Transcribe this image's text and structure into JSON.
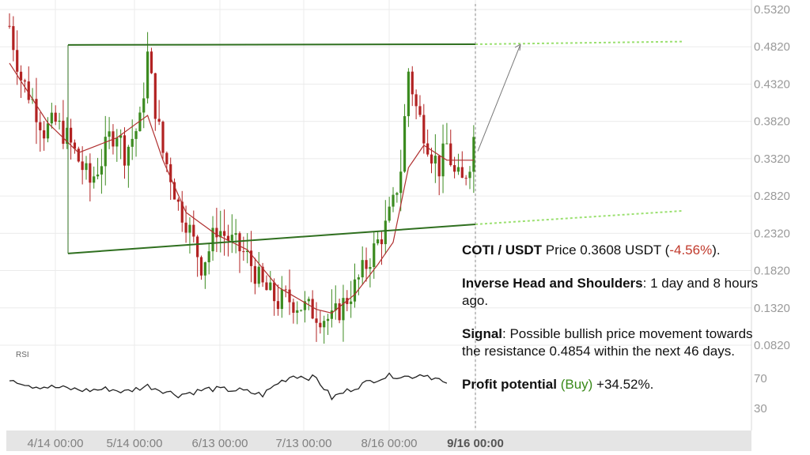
{
  "chart_data": {
    "type": "candlestick",
    "pair": "COTI / USDT",
    "y_ticks": [
      "0.5320",
      "0.4820",
      "0.4320",
      "0.3820",
      "0.3320",
      "0.2820",
      "0.2320",
      "0.1820",
      "0.1320",
      "0.0820"
    ],
    "ylim": [
      0.05,
      0.535
    ],
    "x_ticks": [
      "4/14 00:00",
      "5/14 00:00",
      "6/13 00:00",
      "7/13 00:00",
      "8/16 00:00",
      "9/16 00:00"
    ],
    "rsi": {
      "label": "RSI",
      "ticks": [
        "70",
        "30"
      ]
    },
    "pattern": "Inverse Head and Shoulders",
    "resistance": 0.4854,
    "last_price": 0.3608,
    "price_trace": [
      [
        0,
        0.51
      ],
      [
        3,
        0.44
      ],
      [
        6,
        0.41
      ],
      [
        9,
        0.37
      ],
      [
        12,
        0.38
      ],
      [
        15,
        0.36
      ],
      [
        18,
        0.33
      ],
      [
        21,
        0.3
      ],
      [
        24,
        0.33
      ],
      [
        26,
        0.36
      ],
      [
        28,
        0.37
      ],
      [
        30,
        0.34
      ],
      [
        32,
        0.36
      ],
      [
        34,
        0.38
      ],
      [
        36,
        0.47
      ],
      [
        38,
        0.4
      ],
      [
        40,
        0.34
      ],
      [
        42,
        0.31
      ],
      [
        44,
        0.27
      ],
      [
        46,
        0.25
      ],
      [
        48,
        0.22
      ],
      [
        50,
        0.19
      ],
      [
        52,
        0.21
      ],
      [
        54,
        0.24
      ],
      [
        56,
        0.23
      ],
      [
        58,
        0.22
      ],
      [
        60,
        0.21
      ],
      [
        62,
        0.2
      ],
      [
        64,
        0.18
      ],
      [
        66,
        0.16
      ],
      [
        68,
        0.15
      ],
      [
        70,
        0.14
      ],
      [
        72,
        0.145
      ],
      [
        74,
        0.14
      ],
      [
        76,
        0.135
      ],
      [
        78,
        0.13
      ],
      [
        80,
        0.125
      ],
      [
        82,
        0.12
      ],
      [
        84,
        0.115
      ],
      [
        86,
        0.13
      ],
      [
        88,
        0.145
      ],
      [
        90,
        0.16
      ],
      [
        92,
        0.18
      ],
      [
        94,
        0.2
      ],
      [
        96,
        0.22
      ],
      [
        98,
        0.24
      ],
      [
        100,
        0.27
      ],
      [
        102,
        0.32
      ],
      [
        104,
        0.45
      ],
      [
        106,
        0.4
      ],
      [
        108,
        0.37
      ],
      [
        110,
        0.34
      ],
      [
        112,
        0.32
      ],
      [
        114,
        0.35
      ],
      [
        116,
        0.31
      ],
      [
        118,
        0.3
      ],
      [
        120,
        0.33
      ],
      [
        121,
        0.36
      ]
    ],
    "ma_trace": [
      [
        0,
        0.46
      ],
      [
        10,
        0.38
      ],
      [
        18,
        0.34
      ],
      [
        28,
        0.36
      ],
      [
        36,
        0.39
      ],
      [
        40,
        0.33
      ],
      [
        46,
        0.26
      ],
      [
        54,
        0.23
      ],
      [
        62,
        0.21
      ],
      [
        70,
        0.16
      ],
      [
        80,
        0.13
      ],
      [
        84,
        0.125
      ],
      [
        90,
        0.15
      ],
      [
        96,
        0.19
      ],
      [
        100,
        0.22
      ],
      [
        104,
        0.32
      ],
      [
        108,
        0.35
      ],
      [
        114,
        0.33
      ],
      [
        121,
        0.33
      ]
    ]
  },
  "info": {
    "pair": "COTI / USDT",
    "price_text": "Price 0.3608 USDT (",
    "change": "-4.56%",
    "close_paren": ").",
    "pattern_label": "Inverse Head and Shoulders",
    "pattern_time": ": 1 day and 8 hours ago.",
    "signal_label": "Signal",
    "signal_text": ": Possible bullish price movement towards the resistance 0.4854 within the next 46 days.",
    "profit_label": "Profit potential",
    "profit_dir": "(Buy)",
    "profit_value": "+34.52%."
  },
  "colors": {
    "up": "#3c8b20",
    "down": "#b22222",
    "ma": "#b03030",
    "trend": "#2f6f1f",
    "projection": "#9be070"
  }
}
